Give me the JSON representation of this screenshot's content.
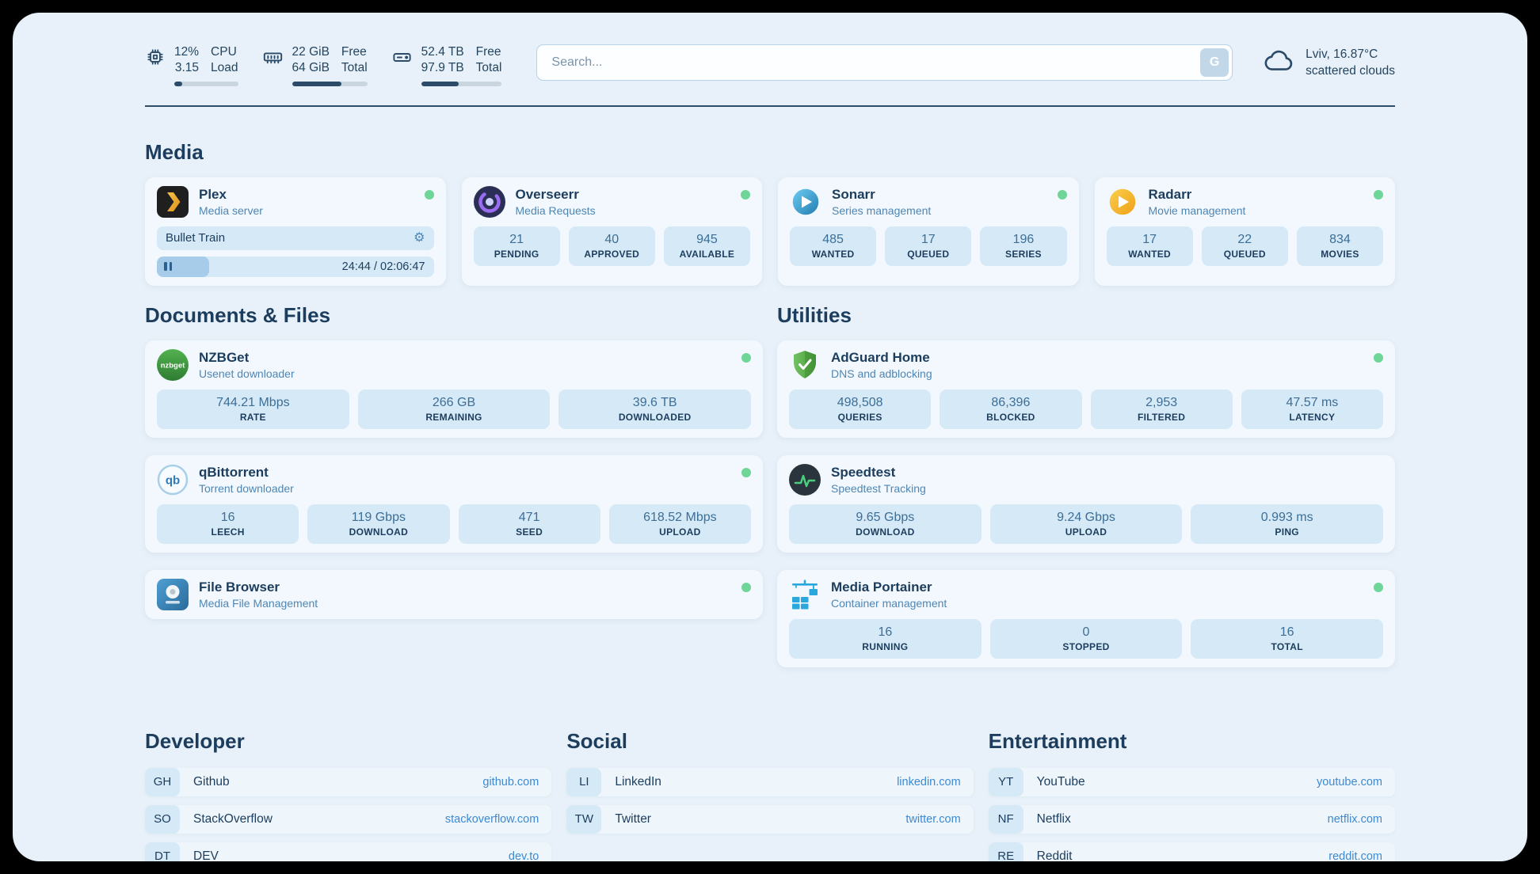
{
  "topbar": {
    "cpu": {
      "percent": "12%",
      "load": "3.15",
      "label_top": "CPU",
      "label_bottom": "Load",
      "bar_percent": 12
    },
    "memory": {
      "free": "22 GiB",
      "total": "64 GiB",
      "label_top": "Free",
      "label_bottom": "Total",
      "bar_percent": 66
    },
    "disk": {
      "free": "52.4 TB",
      "total": "97.9 TB",
      "label_top": "Free",
      "label_bottom": "Total",
      "bar_percent": 47
    },
    "search": {
      "placeholder": "Search...",
      "button_label": "G"
    },
    "weather": {
      "location": "Lviv, 16.87°C",
      "condition": "scattered clouds"
    }
  },
  "media": {
    "heading": "Media",
    "plex": {
      "name": "Plex",
      "subtitle": "Media server",
      "now_playing": "Bullet Train",
      "time": "24:44 / 02:06:47",
      "progress_percent": 19
    },
    "overseerr": {
      "name": "Overseerr",
      "subtitle": "Media Requests",
      "stats": [
        {
          "value": "21",
          "label": "PENDING"
        },
        {
          "value": "40",
          "label": "APPROVED"
        },
        {
          "value": "945",
          "label": "AVAILABLE"
        }
      ]
    },
    "sonarr": {
      "name": "Sonarr",
      "subtitle": "Series management",
      "stats": [
        {
          "value": "485",
          "label": "WANTED"
        },
        {
          "value": "17",
          "label": "QUEUED"
        },
        {
          "value": "196",
          "label": "SERIES"
        }
      ]
    },
    "radarr": {
      "name": "Radarr",
      "subtitle": "Movie management",
      "stats": [
        {
          "value": "17",
          "label": "WANTED"
        },
        {
          "value": "22",
          "label": "QUEUED"
        },
        {
          "value": "834",
          "label": "MOVIES"
        }
      ]
    }
  },
  "documents": {
    "heading": "Documents & Files",
    "nzbget": {
      "name": "NZBGet",
      "subtitle": "Usenet downloader",
      "stats": [
        {
          "value": "744.21 Mbps",
          "label": "RATE"
        },
        {
          "value": "266 GB",
          "label": "REMAINING"
        },
        {
          "value": "39.6 TB",
          "label": "DOWNLOADED"
        }
      ]
    },
    "qbittorrent": {
      "name": "qBittorrent",
      "subtitle": "Torrent downloader",
      "stats": [
        {
          "value": "16",
          "label": "LEECH"
        },
        {
          "value": "119 Gbps",
          "label": "DOWNLOAD"
        },
        {
          "value": "471",
          "label": "SEED"
        },
        {
          "value": "618.52 Mbps",
          "label": "UPLOAD"
        }
      ]
    },
    "filebrowser": {
      "name": "File Browser",
      "subtitle": "Media File Management"
    }
  },
  "utilities": {
    "heading": "Utilities",
    "adguard": {
      "name": "AdGuard Home",
      "subtitle": "DNS and adblocking",
      "stats": [
        {
          "value": "498,508",
          "label": "QUERIES"
        },
        {
          "value": "86,396",
          "label": "BLOCKED"
        },
        {
          "value": "2,953",
          "label": "FILTERED"
        },
        {
          "value": "47.57 ms",
          "label": "LATENCY"
        }
      ]
    },
    "speedtest": {
      "name": "Speedtest",
      "subtitle": "Speedtest Tracking",
      "stats": [
        {
          "value": "9.65 Gbps",
          "label": "DOWNLOAD"
        },
        {
          "value": "9.24 Gbps",
          "label": "UPLOAD"
        },
        {
          "value": "0.993 ms",
          "label": "PING"
        }
      ]
    },
    "portainer": {
      "name": "Media Portainer",
      "subtitle": "Container management",
      "stats": [
        {
          "value": "16",
          "label": "RUNNING"
        },
        {
          "value": "0",
          "label": "STOPPED"
        },
        {
          "value": "16",
          "label": "TOTAL"
        }
      ]
    }
  },
  "bookmarks": [
    {
      "heading": "Developer",
      "items": [
        {
          "abbr": "GH",
          "name": "Github",
          "link": "github.com"
        },
        {
          "abbr": "SO",
          "name": "StackOverflow",
          "link": "stackoverflow.com"
        },
        {
          "abbr": "DT",
          "name": "DEV",
          "link": "dev.to"
        }
      ]
    },
    {
      "heading": "Social",
      "items": [
        {
          "abbr": "LI",
          "name": "LinkedIn",
          "link": "linkedin.com"
        },
        {
          "abbr": "TW",
          "name": "Twitter",
          "link": "twitter.com"
        }
      ]
    },
    {
      "heading": "Entertainment",
      "items": [
        {
          "abbr": "YT",
          "name": "YouTube",
          "link": "youtube.com"
        },
        {
          "abbr": "NF",
          "name": "Netflix",
          "link": "netflix.com"
        },
        {
          "abbr": "RE",
          "name": "Reddit",
          "link": "reddit.com"
        }
      ]
    }
  ],
  "colors": {
    "background": "#e8f1f9",
    "card": "#f2f8fd",
    "stat_block": "#d6e9f7",
    "text_navy": "#1c3d5d",
    "text_secondary": "#4e86b4",
    "link_blue": "#3d8ad2",
    "status_green": "#6fd598"
  }
}
